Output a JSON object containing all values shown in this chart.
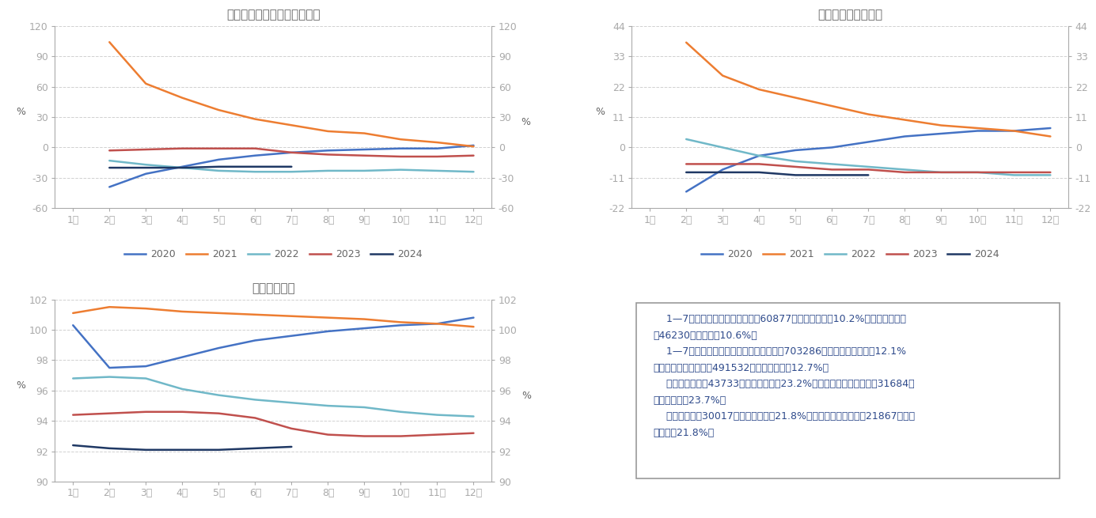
{
  "chart1_title": "商品房销售面积（累计同比）",
  "chart2_title": "房地产开发投资增速",
  "chart3_title": "国房景气指数",
  "months": [
    1,
    2,
    3,
    4,
    5,
    6,
    7,
    8,
    9,
    10,
    11,
    12
  ],
  "month_labels": [
    "1月",
    "2月",
    "3月",
    "4月",
    "5月",
    "6月",
    "7月",
    "8月",
    "9月",
    "10月",
    "11月",
    "12月"
  ],
  "chart1_ylim": [
    -60,
    120
  ],
  "chart1_yticks": [
    -60,
    -30,
    0,
    30,
    60,
    90,
    120
  ],
  "chart1_data": {
    "2020": [
      null,
      -39,
      -26,
      -19,
      -12,
      -8,
      -5,
      -3,
      -2,
      -1,
      -1,
      2
    ],
    "2021": [
      null,
      104,
      63,
      49,
      37,
      28,
      22,
      16,
      14,
      8,
      5,
      1
    ],
    "2022": [
      null,
      -13,
      -17,
      -20,
      -23,
      -24,
      -24,
      -23,
      -23,
      -22,
      -23,
      -24
    ],
    "2023": [
      null,
      -3,
      -2,
      -1,
      -1,
      -1,
      -5,
      -7,
      -8,
      -9,
      -9,
      -8
    ],
    "2024": [
      null,
      -20,
      -20,
      -20,
      -19,
      -19,
      -19,
      null,
      null,
      null,
      null,
      null
    ]
  },
  "chart2_ylim": [
    -22,
    44
  ],
  "chart2_yticks": [
    -22,
    -11,
    0,
    11,
    22,
    33,
    44
  ],
  "chart2_data": {
    "2020": [
      null,
      -16,
      -8,
      -3,
      -1,
      0,
      2,
      4,
      5,
      6,
      6,
      7
    ],
    "2021": [
      null,
      38,
      26,
      21,
      18,
      15,
      12,
      10,
      8,
      7,
      6,
      4
    ],
    "2022": [
      null,
      3,
      0,
      -3,
      -5,
      -6,
      -7,
      -8,
      -9,
      -9,
      -10,
      -10
    ],
    "2023": [
      null,
      -6,
      -6,
      -6,
      -7,
      -8,
      -8,
      -9,
      -9,
      -9,
      -9,
      -9
    ],
    "2024": [
      null,
      -9,
      -9,
      -9,
      -10,
      -10,
      -10,
      null,
      null,
      null,
      null,
      null
    ]
  },
  "chart3_ylim": [
    90,
    102
  ],
  "chart3_yticks": [
    90,
    92,
    94,
    96,
    98,
    100,
    102
  ],
  "chart3_data": {
    "2020": [
      100.3,
      97.5,
      97.6,
      98.2,
      98.8,
      99.3,
      99.6,
      99.9,
      100.1,
      100.3,
      100.4,
      100.8
    ],
    "2021": [
      101.1,
      101.5,
      101.4,
      101.2,
      101.1,
      101.0,
      100.9,
      100.8,
      100.7,
      100.5,
      100.4,
      100.2
    ],
    "2022": [
      96.8,
      96.9,
      96.8,
      96.1,
      95.7,
      95.4,
      95.2,
      95.0,
      94.9,
      94.6,
      94.4,
      94.3
    ],
    "2023": [
      94.4,
      94.5,
      94.6,
      94.6,
      94.5,
      94.2,
      93.5,
      93.1,
      93.0,
      93.0,
      93.1,
      93.2
    ],
    "2024": [
      92.4,
      92.2,
      92.1,
      92.1,
      92.1,
      92.2,
      92.3,
      null,
      null,
      null,
      null,
      null
    ]
  },
  "colors": {
    "2020": "#4472C4",
    "2021": "#ED7D31",
    "2022": "#70B8C8",
    "2023": "#C0504D",
    "2024": "#1F3864"
  },
  "text_color_box": "#2E4A8B",
  "text_lines": [
    "    1—7月份，全国房地产开发投兤60877亿元，同比下陉10.2%；其中，住宅投",
    "兤46230亿元，下陉10.6%。",
    "    1—7月份，房地产开发企业房屋施工面积703286万平方米，同比下陉12.1%",
    "。其中，住宅施工面积491532万平方米，下陉12.7%。",
    "    房屋新开工面积43733万平方米，下陉23.2%。其中，住宅新开工面积31684万",
    "平方米，下陉23.7%。",
    "    房屋竣工面积30017万平方米，下陉21.8%。其中，住宅竣工面积21867万平方",
    "米，下陉21.8%。"
  ],
  "line_width": 1.8,
  "bg_color": "#FFFFFF",
  "grid_color": "#CCCCCC",
  "spine_color": "#AAAAAA",
  "text_color": "#666666",
  "title_fontsize": 11,
  "tick_fontsize": 9,
  "legend_fontsize": 9,
  "years": [
    "2020",
    "2021",
    "2022",
    "2023",
    "2024"
  ]
}
